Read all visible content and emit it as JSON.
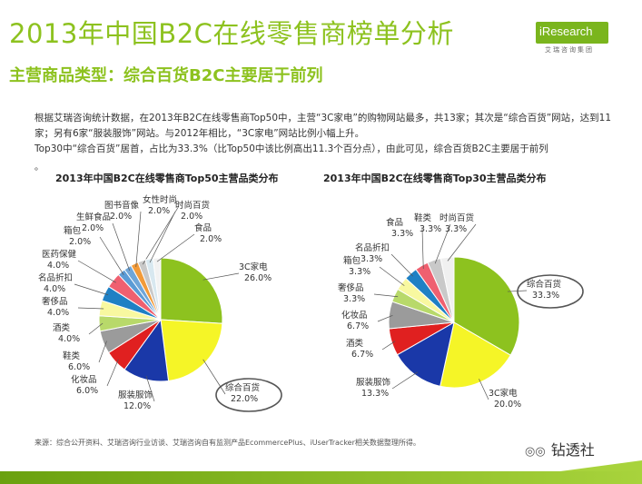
{
  "header": {
    "title": "2013年中国B2C在线零售商榜单分析",
    "subtitle": "主营商品类型：综合百货B2C主要居于前列"
  },
  "brand": {
    "logo_text": "iResearch",
    "logo_sub": "艾瑞咨询集团"
  },
  "body": {
    "paragraph1": "根据艾瑞咨询统计数据，在2013年B2C在线零售商Top50中，主营“3C家电”的购物网站最多，共13家；其次是“综合百货”网站，达到11家；另有6家“服装服饰”网站。与2012年相比，“3C家电”网站比例小幅上升。",
    "paragraph2": "Top30中“综合百货”居首，占比为33.3%（比Top50中该比例高出11.3个百分点），由此可见，综合百货B2C主要居于前列",
    "bullet": "。"
  },
  "source": "来源：综合公开资料、艾瑞咨询行业访谈、艾瑞咨询自有监测产品EcommercePlus、iUserTracker相关数据整理所得。",
  "wechat": {
    "icon": "wechat-icon",
    "text": "钻透社"
  },
  "chart_data": [
    {
      "type": "pie",
      "title": "2013年中国B2C在线零售商Top50主营品类分布",
      "unit": "%",
      "slices": [
        {
          "label": "3C家电",
          "value": 26.0,
          "display": "26.0%",
          "color": "#8dc21f"
        },
        {
          "label": "综合百货",
          "value": 22.0,
          "display": "22.0%",
          "color": "#f5f527"
        },
        {
          "label": "服装服饰",
          "value": 12.0,
          "display": "12.0%",
          "color": "#1a38a8"
        },
        {
          "label": "化妆品",
          "value": 6.0,
          "display": "6.0%",
          "color": "#e02020"
        },
        {
          "label": "鞋类",
          "value": 6.0,
          "display": "6.0%",
          "color": "#9b9b9b"
        },
        {
          "label": "酒类",
          "value": 4.0,
          "display": "4.0%",
          "color": "#b8d96a"
        },
        {
          "label": "奢侈品",
          "value": 4.0,
          "display": "4.0%",
          "color": "#f8f8a0"
        },
        {
          "label": "名品折扣",
          "value": 4.0,
          "display": "4.0%",
          "color": "#1f80c4"
        },
        {
          "label": "医药保健",
          "value": 4.0,
          "display": "4.0%",
          "color": "#ef6070"
        },
        {
          "label": "箱包",
          "value": 2.0,
          "display": "2.0%",
          "color": "#5b9bd5"
        },
        {
          "label": "生鲜食品",
          "value": 2.0,
          "display": "2.0%",
          "color": "#6fa6d8"
        },
        {
          "label": "图书音像",
          "value": 2.0,
          "display": "2.0%",
          "color": "#f29a38"
        },
        {
          "label": "女性时尚",
          "value": 2.0,
          "display": "2.0%",
          "color": "#c9c9c9"
        },
        {
          "label": "时尚百货",
          "value": 2.0,
          "display": "2.0%",
          "color": "#d8e8f0"
        },
        {
          "label": "食品",
          "value": 2.0,
          "display": "2.0%",
          "color": "#f2f2f2"
        }
      ],
      "highlight": "综合百货"
    },
    {
      "type": "pie",
      "title": "2013年中国B2C在线零售商Top30主营品类分布",
      "unit": "%",
      "slices": [
        {
          "label": "综合百货",
          "value": 33.3,
          "display": "33.3%",
          "color": "#8dc21f"
        },
        {
          "label": "3C家电",
          "value": 20.0,
          "display": "20.0%",
          "color": "#f5f527"
        },
        {
          "label": "服装服饰",
          "value": 13.3,
          "display": "13.3%",
          "color": "#1a38a8"
        },
        {
          "label": "酒类",
          "value": 6.7,
          "display": "6.7%",
          "color": "#e02020"
        },
        {
          "label": "化妆品",
          "value": 6.7,
          "display": "6.7%",
          "color": "#9b9b9b"
        },
        {
          "label": "奢侈品",
          "value": 3.3,
          "display": "3.3%",
          "color": "#b8d96a"
        },
        {
          "label": "箱包",
          "value": 3.3,
          "display": "3.3%",
          "color": "#f8f8a0"
        },
        {
          "label": "名品折扣",
          "value": 3.3,
          "display": "3.3%",
          "color": "#1f80c4"
        },
        {
          "label": "食品",
          "value": 3.3,
          "display": "3.3%",
          "color": "#ef6070"
        },
        {
          "label": "鞋类",
          "value": 3.3,
          "display": "3.3%",
          "color": "#c9c9c9"
        },
        {
          "label": "时尚百货",
          "value": 3.3,
          "display": "3.3%",
          "color": "#f0f0f0"
        }
      ],
      "highlight": "综合百货"
    }
  ]
}
